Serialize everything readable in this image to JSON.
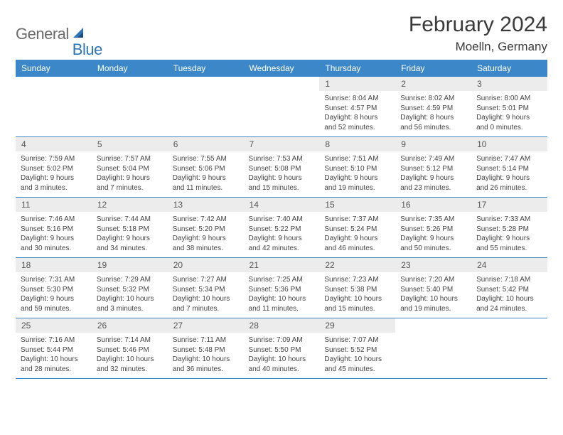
{
  "logo": {
    "general": "General",
    "blue": "Blue"
  },
  "title": "February 2024",
  "location": "Moelln, Germany",
  "colors": {
    "header_bg": "#3b87c8",
    "header_text": "#ffffff",
    "daynum_bg": "#ececec",
    "daynum_text": "#555555",
    "body_text": "#444444",
    "rule": "#3b87c8",
    "logo_gray": "#6b6b6b",
    "logo_blue": "#2e75b6"
  },
  "day_names": [
    "Sunday",
    "Monday",
    "Tuesday",
    "Wednesday",
    "Thursday",
    "Friday",
    "Saturday"
  ],
  "weeks": [
    [
      null,
      null,
      null,
      null,
      {
        "n": "1",
        "sr": "Sunrise: 8:04 AM",
        "ss": "Sunset: 4:57 PM",
        "dl": "Daylight: 8 hours and 52 minutes."
      },
      {
        "n": "2",
        "sr": "Sunrise: 8:02 AM",
        "ss": "Sunset: 4:59 PM",
        "dl": "Daylight: 8 hours and 56 minutes."
      },
      {
        "n": "3",
        "sr": "Sunrise: 8:00 AM",
        "ss": "Sunset: 5:01 PM",
        "dl": "Daylight: 9 hours and 0 minutes."
      }
    ],
    [
      {
        "n": "4",
        "sr": "Sunrise: 7:59 AM",
        "ss": "Sunset: 5:02 PM",
        "dl": "Daylight: 9 hours and 3 minutes."
      },
      {
        "n": "5",
        "sr": "Sunrise: 7:57 AM",
        "ss": "Sunset: 5:04 PM",
        "dl": "Daylight: 9 hours and 7 minutes."
      },
      {
        "n": "6",
        "sr": "Sunrise: 7:55 AM",
        "ss": "Sunset: 5:06 PM",
        "dl": "Daylight: 9 hours and 11 minutes."
      },
      {
        "n": "7",
        "sr": "Sunrise: 7:53 AM",
        "ss": "Sunset: 5:08 PM",
        "dl": "Daylight: 9 hours and 15 minutes."
      },
      {
        "n": "8",
        "sr": "Sunrise: 7:51 AM",
        "ss": "Sunset: 5:10 PM",
        "dl": "Daylight: 9 hours and 19 minutes."
      },
      {
        "n": "9",
        "sr": "Sunrise: 7:49 AM",
        "ss": "Sunset: 5:12 PM",
        "dl": "Daylight: 9 hours and 23 minutes."
      },
      {
        "n": "10",
        "sr": "Sunrise: 7:47 AM",
        "ss": "Sunset: 5:14 PM",
        "dl": "Daylight: 9 hours and 26 minutes."
      }
    ],
    [
      {
        "n": "11",
        "sr": "Sunrise: 7:46 AM",
        "ss": "Sunset: 5:16 PM",
        "dl": "Daylight: 9 hours and 30 minutes."
      },
      {
        "n": "12",
        "sr": "Sunrise: 7:44 AM",
        "ss": "Sunset: 5:18 PM",
        "dl": "Daylight: 9 hours and 34 minutes."
      },
      {
        "n": "13",
        "sr": "Sunrise: 7:42 AM",
        "ss": "Sunset: 5:20 PM",
        "dl": "Daylight: 9 hours and 38 minutes."
      },
      {
        "n": "14",
        "sr": "Sunrise: 7:40 AM",
        "ss": "Sunset: 5:22 PM",
        "dl": "Daylight: 9 hours and 42 minutes."
      },
      {
        "n": "15",
        "sr": "Sunrise: 7:37 AM",
        "ss": "Sunset: 5:24 PM",
        "dl": "Daylight: 9 hours and 46 minutes."
      },
      {
        "n": "16",
        "sr": "Sunrise: 7:35 AM",
        "ss": "Sunset: 5:26 PM",
        "dl": "Daylight: 9 hours and 50 minutes."
      },
      {
        "n": "17",
        "sr": "Sunrise: 7:33 AM",
        "ss": "Sunset: 5:28 PM",
        "dl": "Daylight: 9 hours and 55 minutes."
      }
    ],
    [
      {
        "n": "18",
        "sr": "Sunrise: 7:31 AM",
        "ss": "Sunset: 5:30 PM",
        "dl": "Daylight: 9 hours and 59 minutes."
      },
      {
        "n": "19",
        "sr": "Sunrise: 7:29 AM",
        "ss": "Sunset: 5:32 PM",
        "dl": "Daylight: 10 hours and 3 minutes."
      },
      {
        "n": "20",
        "sr": "Sunrise: 7:27 AM",
        "ss": "Sunset: 5:34 PM",
        "dl": "Daylight: 10 hours and 7 minutes."
      },
      {
        "n": "21",
        "sr": "Sunrise: 7:25 AM",
        "ss": "Sunset: 5:36 PM",
        "dl": "Daylight: 10 hours and 11 minutes."
      },
      {
        "n": "22",
        "sr": "Sunrise: 7:23 AM",
        "ss": "Sunset: 5:38 PM",
        "dl": "Daylight: 10 hours and 15 minutes."
      },
      {
        "n": "23",
        "sr": "Sunrise: 7:20 AM",
        "ss": "Sunset: 5:40 PM",
        "dl": "Daylight: 10 hours and 19 minutes."
      },
      {
        "n": "24",
        "sr": "Sunrise: 7:18 AM",
        "ss": "Sunset: 5:42 PM",
        "dl": "Daylight: 10 hours and 24 minutes."
      }
    ],
    [
      {
        "n": "25",
        "sr": "Sunrise: 7:16 AM",
        "ss": "Sunset: 5:44 PM",
        "dl": "Daylight: 10 hours and 28 minutes."
      },
      {
        "n": "26",
        "sr": "Sunrise: 7:14 AM",
        "ss": "Sunset: 5:46 PM",
        "dl": "Daylight: 10 hours and 32 minutes."
      },
      {
        "n": "27",
        "sr": "Sunrise: 7:11 AM",
        "ss": "Sunset: 5:48 PM",
        "dl": "Daylight: 10 hours and 36 minutes."
      },
      {
        "n": "28",
        "sr": "Sunrise: 7:09 AM",
        "ss": "Sunset: 5:50 PM",
        "dl": "Daylight: 10 hours and 40 minutes."
      },
      {
        "n": "29",
        "sr": "Sunrise: 7:07 AM",
        "ss": "Sunset: 5:52 PM",
        "dl": "Daylight: 10 hours and 45 minutes."
      },
      null,
      null
    ]
  ]
}
